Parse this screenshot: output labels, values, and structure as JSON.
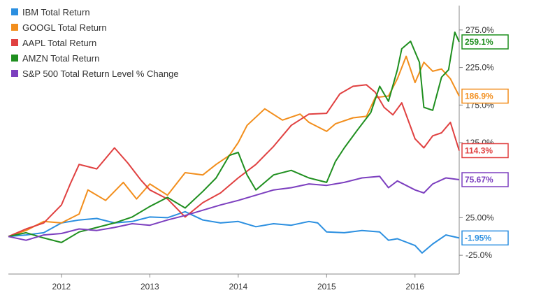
{
  "chart_data": {
    "type": "line",
    "title": "",
    "xlabel": "",
    "ylabel": "",
    "xlim": [
      2011.4,
      2016.5
    ],
    "ylim": [
      -50,
      300
    ],
    "grid": false,
    "legend_position": "top-left",
    "x_ticks": [
      {
        "x": 2012,
        "label": "2012"
      },
      {
        "x": 2013,
        "label": "2013"
      },
      {
        "x": 2014,
        "label": "2014"
      },
      {
        "x": 2015,
        "label": "2015"
      },
      {
        "x": 2016,
        "label": "2016"
      }
    ],
    "y_ticks": [
      {
        "y": 275,
        "label": "275.0%"
      },
      {
        "y": 225,
        "label": "225.0%"
      },
      {
        "y": 175,
        "label": "175.0%"
      },
      {
        "y": 125,
        "label": "125.0%"
      },
      {
        "y": 25,
        "label": "25.00%"
      },
      {
        "y": -25,
        "label": "-25.0%"
      }
    ],
    "series": [
      {
        "name": "IBM Total Return",
        "color": "#2b8fe0",
        "end_label": "-1.95%",
        "x": [
          2011.4,
          2011.6,
          2011.8,
          2012.0,
          2012.2,
          2012.4,
          2012.6,
          2012.8,
          2013.0,
          2013.2,
          2013.4,
          2013.6,
          2013.8,
          2014.0,
          2014.2,
          2014.4,
          2014.6,
          2014.8,
          2014.9,
          2015.0,
          2015.2,
          2015.4,
          2015.6,
          2015.7,
          2015.8,
          2016.0,
          2016.08,
          2016.2,
          2016.35,
          2016.5
        ],
        "y": [
          0,
          2,
          5,
          18,
          22,
          24,
          18,
          20,
          26,
          25,
          33,
          22,
          18,
          20,
          13,
          17,
          15,
          20,
          18,
          6,
          5,
          8,
          6,
          -5,
          -3,
          -12,
          -22,
          -10,
          2,
          -1.95
        ]
      },
      {
        "name": "GOOGL Total Return",
        "color": "#f28e1c",
        "end_label": "186.9%",
        "x": [
          2011.4,
          2011.6,
          2011.8,
          2012.0,
          2012.2,
          2012.3,
          2012.5,
          2012.7,
          2012.85,
          2013.0,
          2013.2,
          2013.4,
          2013.6,
          2013.75,
          2013.9,
          2014.0,
          2014.1,
          2014.3,
          2014.5,
          2014.7,
          2014.8,
          2015.0,
          2015.1,
          2015.3,
          2015.45,
          2015.55,
          2015.7,
          2015.8,
          2015.9,
          2016.0,
          2016.1,
          2016.2,
          2016.3,
          2016.4,
          2016.5
        ],
        "y": [
          0,
          8,
          20,
          18,
          30,
          62,
          48,
          72,
          50,
          70,
          55,
          85,
          82,
          96,
          108,
          125,
          148,
          170,
          155,
          163,
          152,
          140,
          150,
          158,
          160,
          185,
          187,
          210,
          240,
          205,
          232,
          220,
          223,
          210,
          186.9
        ]
      },
      {
        "name": "AAPL Total Return",
        "color": "#e04040",
        "end_label": "114.3%",
        "x": [
          2011.4,
          2011.6,
          2011.8,
          2012.0,
          2012.1,
          2012.2,
          2012.4,
          2012.6,
          2012.75,
          2012.9,
          2013.0,
          2013.2,
          2013.4,
          2013.6,
          2013.8,
          2014.0,
          2014.2,
          2014.4,
          2014.6,
          2014.8,
          2015.0,
          2015.15,
          2015.3,
          2015.45,
          2015.55,
          2015.65,
          2015.75,
          2015.85,
          2016.0,
          2016.1,
          2016.2,
          2016.3,
          2016.4,
          2016.5
        ],
        "y": [
          0,
          10,
          18,
          42,
          70,
          96,
          90,
          118,
          98,
          75,
          62,
          50,
          26,
          45,
          58,
          78,
          96,
          120,
          148,
          163,
          164,
          190,
          200,
          202,
          192,
          172,
          162,
          178,
          130,
          118,
          134,
          138,
          152,
          114.3
        ]
      },
      {
        "name": "AMZN Total Return",
        "color": "#1f8f1f",
        "end_label": "259.1%",
        "x": [
          2011.4,
          2011.6,
          2011.8,
          2012.0,
          2012.2,
          2012.4,
          2012.6,
          2012.8,
          2013.0,
          2013.2,
          2013.4,
          2013.6,
          2013.75,
          2013.9,
          2014.0,
          2014.1,
          2014.2,
          2014.4,
          2014.6,
          2014.8,
          2015.0,
          2015.1,
          2015.2,
          2015.35,
          2015.5,
          2015.6,
          2015.7,
          2015.8,
          2015.85,
          2015.95,
          2016.05,
          2016.1,
          2016.2,
          2016.3,
          2016.38,
          2016.45,
          2016.5
        ],
        "y": [
          0,
          5,
          -2,
          -8,
          6,
          12,
          18,
          26,
          40,
          52,
          38,
          60,
          78,
          108,
          112,
          82,
          62,
          82,
          88,
          78,
          72,
          100,
          118,
          142,
          165,
          200,
          180,
          222,
          250,
          260,
          232,
          172,
          168,
          212,
          222,
          272,
          259.1
        ]
      },
      {
        "name": "S&P 500 Total Return Level % Change",
        "color": "#7c3fbf",
        "end_label": "75.67%",
        "x": [
          2011.4,
          2011.6,
          2011.8,
          2012.0,
          2012.2,
          2012.4,
          2012.6,
          2012.8,
          2013.0,
          2013.2,
          2013.4,
          2013.6,
          2013.8,
          2014.0,
          2014.2,
          2014.4,
          2014.6,
          2014.8,
          2015.0,
          2015.2,
          2015.4,
          2015.6,
          2015.7,
          2015.8,
          2016.0,
          2016.1,
          2016.2,
          2016.35,
          2016.5
        ],
        "y": [
          0,
          -5,
          2,
          4,
          10,
          8,
          12,
          17,
          15,
          22,
          28,
          35,
          42,
          48,
          55,
          62,
          65,
          70,
          68,
          72,
          78,
          80,
          65,
          74,
          62,
          58,
          70,
          78,
          75.67
        ]
      }
    ]
  }
}
